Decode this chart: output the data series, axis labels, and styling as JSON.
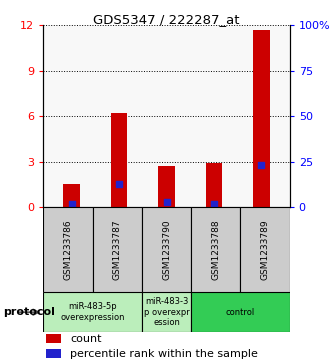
{
  "title": "GDS5347 / 222287_at",
  "categories": [
    "GSM1233786",
    "GSM1233787",
    "GSM1233790",
    "GSM1233788",
    "GSM1233789"
  ],
  "red_values": [
    1.5,
    6.2,
    2.7,
    2.9,
    11.7
  ],
  "blue_values": [
    0.2,
    1.5,
    0.35,
    0.2,
    2.8
  ],
  "ylim_left": [
    0,
    12
  ],
  "ylim_right": [
    0,
    100
  ],
  "yticks_left": [
    0,
    3,
    6,
    9,
    12
  ],
  "yticks_right": [
    0,
    25,
    50,
    75,
    100
  ],
  "ytick_labels_right": [
    "0",
    "25",
    "50",
    "75",
    "100%"
  ],
  "red_color": "#cc0000",
  "blue_color": "#2222cc",
  "bar_width": 0.35,
  "group_ranges": [
    [
      0,
      2,
      "miR-483-5p\noverexpression",
      "#bbeebb"
    ],
    [
      2,
      3,
      "miR-483-3\np overexpr\nession",
      "#bbeebb"
    ],
    [
      3,
      5,
      "control",
      "#33cc55"
    ]
  ],
  "legend_count_label": "count",
  "legend_percentile_label": "percentile rank within the sample",
  "protocol_label": "protocol",
  "gray_color": "#cccccc"
}
